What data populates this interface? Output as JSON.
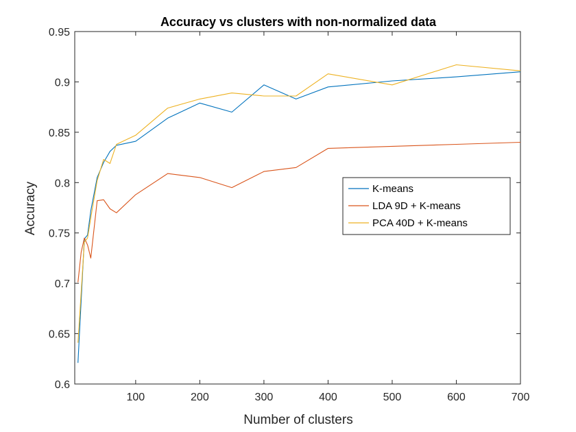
{
  "chart_data": {
    "type": "line",
    "title": "Accuracy vs clusters with non-normalized data",
    "xlabel": "Number of clusters",
    "ylabel": "Accuracy",
    "xlim": [
      5,
      700
    ],
    "ylim": [
      0.6,
      0.95
    ],
    "xticks": [
      100,
      200,
      300,
      400,
      500,
      600,
      700
    ],
    "yticks": [
      0.6,
      0.65,
      0.7,
      0.75,
      0.8,
      0.85,
      0.9,
      0.95
    ],
    "grid": false,
    "legend_position": "right-middle",
    "series": [
      {
        "name": "K-means",
        "color": "#0072BD",
        "x": [
          10,
          20,
          25,
          30,
          40,
          50,
          60,
          70,
          100,
          150,
          200,
          250,
          300,
          350,
          400,
          500,
          600,
          700
        ],
        "y": [
          0.621,
          0.744,
          0.748,
          0.772,
          0.805,
          0.82,
          0.831,
          0.837,
          0.841,
          0.864,
          0.879,
          0.87,
          0.897,
          0.883,
          0.895,
          0.901,
          0.905,
          0.91
        ]
      },
      {
        "name": "LDA 9D + K-means",
        "color": "#D95319",
        "x": [
          10,
          15,
          20,
          25,
          30,
          40,
          50,
          60,
          70,
          100,
          150,
          200,
          250,
          300,
          350,
          400,
          500,
          600,
          700
        ],
        "y": [
          0.701,
          0.731,
          0.745,
          0.738,
          0.725,
          0.782,
          0.783,
          0.774,
          0.77,
          0.788,
          0.809,
          0.805,
          0.795,
          0.811,
          0.815,
          0.834,
          0.836,
          0.838,
          0.84
        ]
      },
      {
        "name": "PCA 40D + K-means",
        "color": "#EDB120",
        "x": [
          10,
          20,
          25,
          30,
          40,
          50,
          60,
          70,
          100,
          150,
          200,
          250,
          300,
          350,
          400,
          500,
          600,
          700
        ],
        "y": [
          0.641,
          0.741,
          0.745,
          0.765,
          0.802,
          0.823,
          0.819,
          0.838,
          0.847,
          0.874,
          0.883,
          0.889,
          0.886,
          0.886,
          0.908,
          0.897,
          0.917,
          0.911
        ]
      }
    ]
  }
}
